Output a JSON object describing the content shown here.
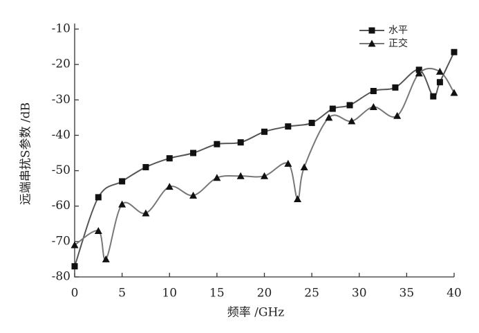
{
  "chart_data": {
    "type": "line",
    "xlabel": "频率 /GHz",
    "ylabel": "远端串扰S参数 /dB",
    "xlim": [
      0,
      40
    ],
    "ylim": [
      -80,
      -10
    ],
    "xticks": [
      0,
      5,
      10,
      15,
      20,
      25,
      30,
      35,
      40
    ],
    "yticks": [
      -10,
      -20,
      -30,
      -40,
      -50,
      -60,
      -70,
      -80
    ],
    "legend": "upper right",
    "series": [
      {
        "name": "水平",
        "color": "#555555",
        "marker": "square",
        "x": [
          0,
          2.5,
          5,
          7.5,
          10,
          12.5,
          15,
          17.5,
          20,
          22.5,
          25,
          27.2,
          29,
          31.5,
          33.8,
          36.3,
          37.8,
          38.5,
          40
        ],
        "values": [
          -77,
          -57.5,
          -53,
          -49,
          -46.5,
          -45,
          -42.5,
          -42,
          -39,
          -37.5,
          -36.5,
          -32.5,
          -31.5,
          -27.5,
          -26.5,
          -21.5,
          -29,
          -25,
          -16.5
        ]
      },
      {
        "name": "正交",
        "color": "#777777",
        "marker": "triangle",
        "x": [
          0,
          2.5,
          3.3,
          5,
          7.5,
          10,
          12.5,
          15,
          17.5,
          20,
          22.5,
          23.5,
          24.2,
          26.8,
          29.2,
          31.5,
          34,
          36.3,
          38.5,
          40
        ],
        "values": [
          -71,
          -67,
          -75,
          -59.5,
          -62,
          -54.5,
          -57,
          -52,
          -51.5,
          -51.5,
          -48,
          -58,
          -49,
          -35,
          -36,
          -32,
          -34.5,
          -22.5,
          -22,
          -28
        ]
      }
    ]
  }
}
